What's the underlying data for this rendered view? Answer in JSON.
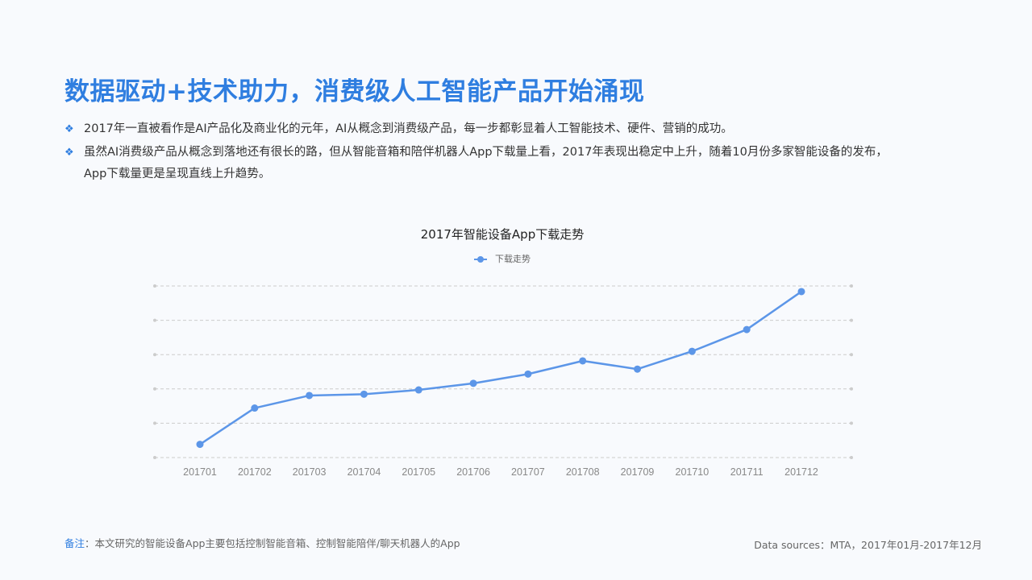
{
  "title": "数据驱动+技术助力，消费级人工智能产品开始涌现",
  "bullets": [
    {
      "icon": "diamond-bullet-icon",
      "text": "2017年一直被看作是AI产品化及商业化的元年，AI从概念到消费级产品，每一步都彰显着人工智能技术、硬件、营销的成功。"
    },
    {
      "icon": "diamond-bullet-icon",
      "text": "虽然AI消费级产品从概念到落地还有很长的路，但从智能音箱和陪伴机器人App下载量上看，2017年表现出稳定中上升，随着10月份多家智能设备的发布，App下载量更是呈现直线上升趋势。"
    }
  ],
  "note": {
    "label": "备注",
    "text": "：本文研究的智能设备App主要包括控制智能音箱、控制智能陪伴/聊天机器人的App"
  },
  "source": "Data sources：MTA，2017年01月-2017年12月",
  "colors": {
    "accent": "#2f7ee0",
    "series": "#5c96e8",
    "grid": "#cccccc"
  },
  "chart_data": {
    "type": "line",
    "title": "2017年智能设备App下载走势",
    "categories": [
      "201701",
      "201702",
      "201703",
      "201704",
      "201705",
      "201706",
      "201707",
      "201708",
      "201709",
      "201710",
      "201711",
      "201712"
    ],
    "series": [
      {
        "name": "下载走势",
        "values": [
          4,
          15,
          18.8,
          19.2,
          20.5,
          22.5,
          25.3,
          29.3,
          26.8,
          32.2,
          38.8,
          50.3
        ]
      }
    ],
    "ylim": [
      0,
      52
    ],
    "y_ticks_shown": false,
    "grid": true,
    "legend": "top-center"
  }
}
